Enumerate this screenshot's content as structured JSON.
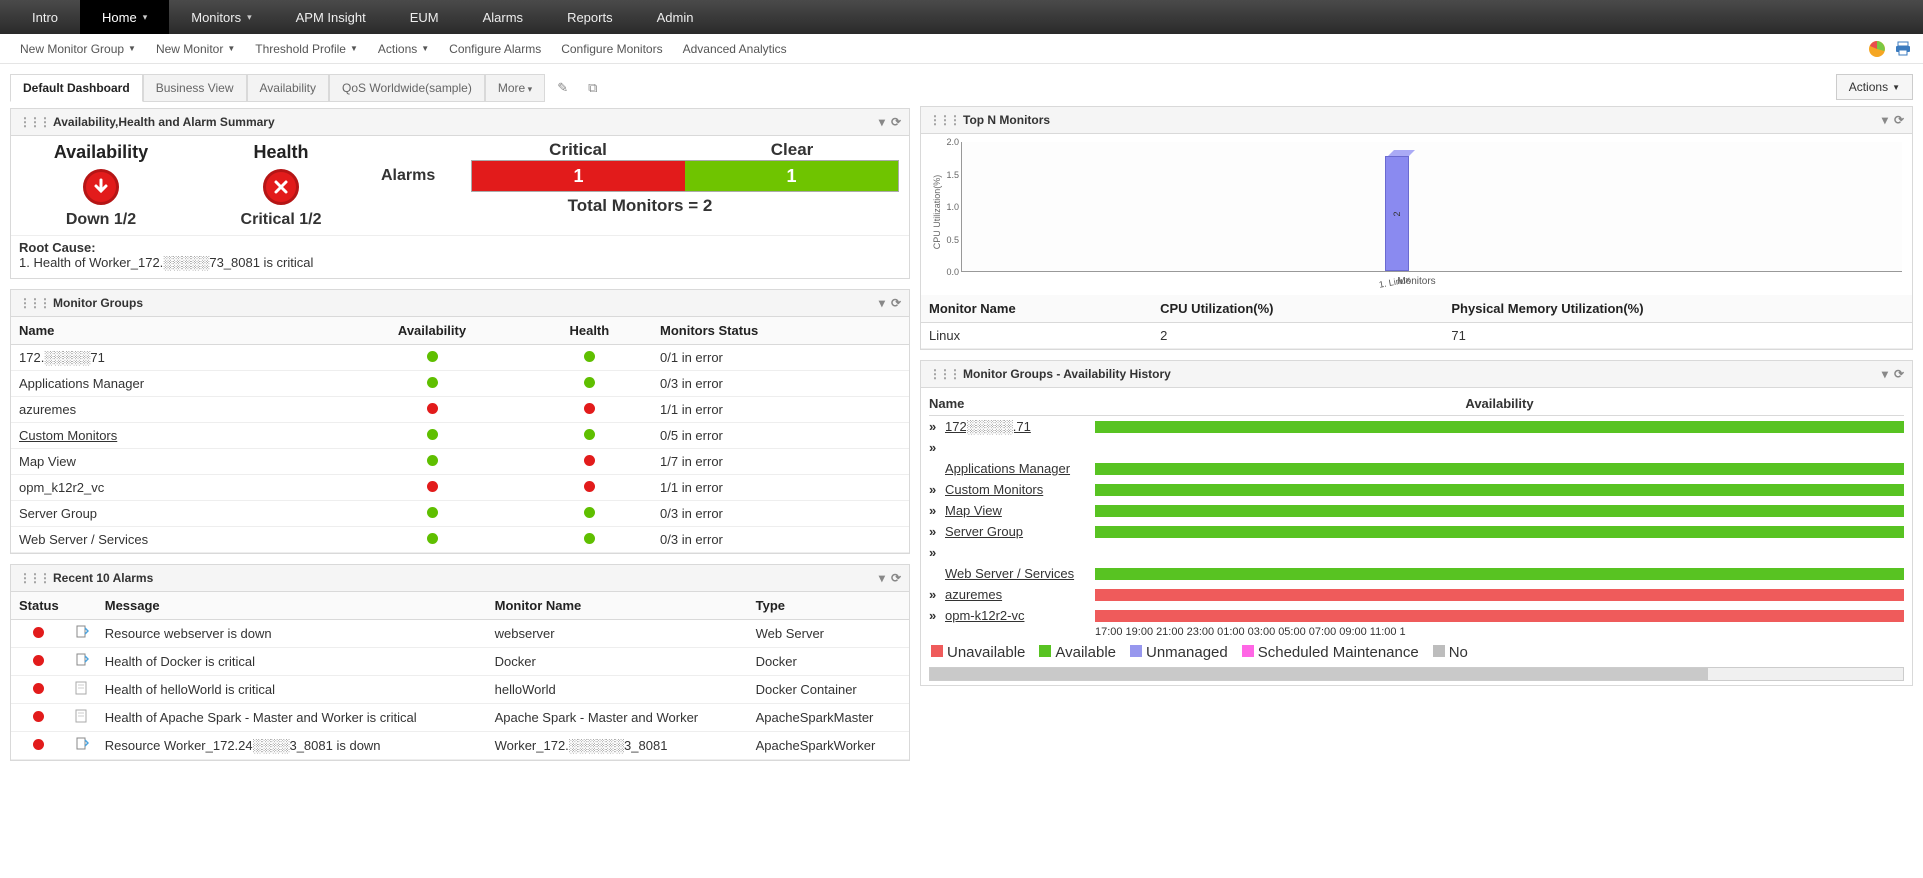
{
  "colors": {
    "critical": "#e21b1b",
    "clear": "#6fc400",
    "green_dot": "#5fbf00",
    "red_dot": "#e21b1b",
    "bar_fill": "#8a8af0",
    "avail_green": "#58c322",
    "avail_red": "#ef5b5b",
    "unmanaged": "#9797ee",
    "sched": "#ff66e5",
    "na": "#bdbdbd"
  },
  "topnav": [
    {
      "label": "Intro",
      "active": false,
      "dropdown": false
    },
    {
      "label": "Home",
      "active": true,
      "dropdown": true
    },
    {
      "label": "Monitors",
      "active": false,
      "dropdown": true
    },
    {
      "label": "APM Insight",
      "active": false,
      "dropdown": false
    },
    {
      "label": "EUM",
      "active": false,
      "dropdown": false
    },
    {
      "label": "Alarms",
      "active": false,
      "dropdown": false
    },
    {
      "label": "Reports",
      "active": false,
      "dropdown": false
    },
    {
      "label": "Admin",
      "active": false,
      "dropdown": false
    }
  ],
  "subnav": [
    {
      "label": "New Monitor Group",
      "dropdown": true
    },
    {
      "label": "New Monitor",
      "dropdown": true
    },
    {
      "label": "Threshold Profile",
      "dropdown": true
    },
    {
      "label": "Actions",
      "dropdown": true
    },
    {
      "label": "Configure Alarms",
      "dropdown": false
    },
    {
      "label": "Configure Monitors",
      "dropdown": false
    },
    {
      "label": "Advanced Analytics",
      "dropdown": false
    }
  ],
  "tabs": [
    {
      "label": "Default Dashboard",
      "active": true
    },
    {
      "label": "Business View",
      "active": false
    },
    {
      "label": "Availability",
      "active": false
    },
    {
      "label": "QoS Worldwide(sample)",
      "active": false
    },
    {
      "label": "More",
      "active": false,
      "dropdown": true
    }
  ],
  "actions_button": "Actions",
  "summary": {
    "title": "Availability,Health and Alarm Summary",
    "availability": {
      "label": "Availability",
      "status": "Down 1/2",
      "icon_color": "#e21b1b"
    },
    "health": {
      "label": "Health",
      "status": "Critical 1/2",
      "icon_color": "#e21b1b"
    },
    "alarms_label": "Alarms",
    "critical_label": "Critical",
    "clear_label": "Clear",
    "critical_count": "1",
    "clear_count": "1",
    "total_monitors": "Total Monitors = 2",
    "rootcause_label": "Root Cause:",
    "rootcause_text": "1. Health of Worker_172.░░░░░73_8081 is critical"
  },
  "monitor_groups": {
    "title": "Monitor Groups",
    "columns": [
      "Name",
      "Availability",
      "Health",
      "Monitors Status"
    ],
    "rows": [
      {
        "name": "172.░░░░░71",
        "avail": "green",
        "health": "green",
        "status": "0/1 in error",
        "link": false
      },
      {
        "name": "Applications Manager",
        "avail": "green",
        "health": "green",
        "status": "0/3 in error",
        "link": false
      },
      {
        "name": "azuremes",
        "avail": "red",
        "health": "red",
        "status": "1/1 in error",
        "link": false
      },
      {
        "name": "Custom Monitors",
        "avail": "green",
        "health": "green",
        "status": "0/5 in error",
        "link": true
      },
      {
        "name": "Map View",
        "avail": "green",
        "health": "red",
        "status": "1/7 in error",
        "link": false
      },
      {
        "name": "opm_k12r2_vc",
        "avail": "red",
        "health": "red",
        "status": "1/1 in error",
        "link": false
      },
      {
        "name": "Server Group",
        "avail": "green",
        "health": "green",
        "status": "0/3 in error",
        "link": false
      },
      {
        "name": "Web Server / Services",
        "avail": "green",
        "health": "green",
        "status": "0/3 in error",
        "link": false
      }
    ]
  },
  "recent_alarms": {
    "title": "Recent 10 Alarms",
    "columns": [
      "Status",
      "",
      "Message",
      "Monitor Name",
      "Type"
    ],
    "rows": [
      {
        "status": "red",
        "icon": "doc-link",
        "message": "Resource webserver is down",
        "monitor": "webserver",
        "type": "Web Server"
      },
      {
        "status": "red",
        "icon": "doc-link",
        "message": "Health of Docker is critical",
        "monitor": "Docker",
        "type": "Docker"
      },
      {
        "status": "red",
        "icon": "doc",
        "message": "Health of helloWorld is critical",
        "monitor": "helloWorld",
        "type": "Docker Container"
      },
      {
        "status": "red",
        "icon": "doc",
        "message": "Health of Apache Spark - Master and Worker is critical",
        "monitor": "Apache Spark - Master and Worker",
        "type": "ApacheSparkMaster"
      },
      {
        "status": "red",
        "icon": "doc-link",
        "message": "Resource Worker_172.24░░░░3_8081 is down",
        "monitor": "Worker_172.░░░░░░3_8081",
        "type": "ApacheSparkWorker"
      }
    ]
  },
  "topn": {
    "title": "Top N Monitors",
    "y_label": "CPU Utilization(%)",
    "y_ticks": [
      "0.0",
      "0.5",
      "1.0",
      "1.5",
      "2.0"
    ],
    "y_max": 2.0,
    "bars": [
      {
        "label": "1. Linux",
        "value": 2
      }
    ],
    "x_label": "Monitors",
    "columns": [
      "Monitor Name",
      "CPU Utilization(%)",
      "Physical Memory Utilization(%)"
    ],
    "rows": [
      {
        "name": "Linux",
        "cpu": "2",
        "mem": "71"
      }
    ]
  },
  "avail_history": {
    "title": "Monitor Groups - Availability History",
    "name_col": "Name",
    "avail_col": "Availability",
    "rows": [
      {
        "name": "172░░░░░.71",
        "color": "green",
        "chev": true
      },
      {
        "name": "Applications Manager",
        "color": "green",
        "chev": true,
        "chev_above": true
      },
      {
        "name": "Custom Monitors",
        "color": "green",
        "chev": true
      },
      {
        "name": "Map View",
        "color": "green",
        "chev": true
      },
      {
        "name": "Server Group",
        "color": "green",
        "chev": true
      },
      {
        "name": "Web Server / Services",
        "color": "green",
        "chev": true,
        "chev_above": true
      },
      {
        "name": "azuremes",
        "color": "red",
        "chev": true
      },
      {
        "name": "opm-k12r2-vc",
        "color": "red",
        "chev": true
      }
    ],
    "time_labels": [
      "17:00",
      "19:00",
      "21:00",
      "23:00",
      "01:00",
      "03:00",
      "05:00",
      "07:00",
      "09:00",
      "11:00",
      "1"
    ],
    "legend": [
      {
        "label": "Unavailable",
        "color": "#ef5b5b"
      },
      {
        "label": "Available",
        "color": "#58c322"
      },
      {
        "label": "Unmanaged",
        "color": "#9797ee"
      },
      {
        "label": "Scheduled Maintenance",
        "color": "#ff66e5"
      },
      {
        "label": "No",
        "color": "#bdbdbd"
      }
    ]
  }
}
